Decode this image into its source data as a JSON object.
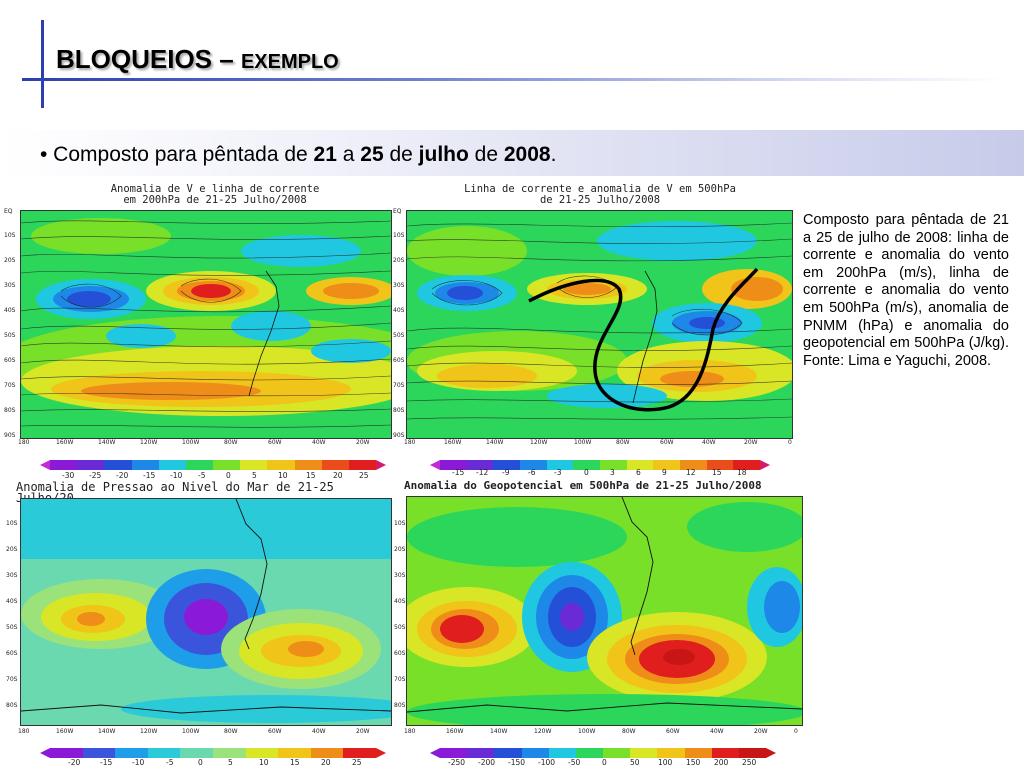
{
  "slide": {
    "title_main": "BLOQUEIOS –",
    "title_small": "EXEMPLO",
    "bullet": {
      "prefix": "• Composto para pêntada de ",
      "d1": "21",
      "mid1": " a ",
      "d2": "25",
      "mid2": " de ",
      "month": "julho",
      "mid3": " de ",
      "year": "2008",
      "end": "."
    },
    "caption": "Composto para pêntada de 21 a 25 de julho de 2008: linha de corrente e anomalia do vento em 200hPa (m/s), linha de corrente e anomalia do vento em 500hPa (m/s), anomalia de PNMM (hPa) e anomalia do geopotencial em 500hPa (J/kg). Fonte: Lima e Yaguchi, 2008."
  },
  "panels": {
    "p1": {
      "title_l1": "Anomalia de V e linha de corrente",
      "title_l2": "em 200hPa de 21-25 Julho/2008",
      "lats": [
        "EQ",
        "10S",
        "20S",
        "30S",
        "40S",
        "50S",
        "60S",
        "70S",
        "80S",
        "90S"
      ],
      "lons": [
        "180",
        "160W",
        "140W",
        "120W",
        "100W",
        "80W",
        "60W",
        "40W",
        "20W"
      ],
      "colorbar": [
        "-30",
        "-25",
        "-20",
        "-15",
        "-10",
        "-5",
        "0",
        "5",
        "10",
        "15",
        "20",
        "25"
      ],
      "colors": [
        "#8b1ad8",
        "#6a2bd6",
        "#2450d8",
        "#1e88e8",
        "#1fc8e0",
        "#2bd65a",
        "#79e02a",
        "#d9e625",
        "#f0c419",
        "#ef8d19",
        "#ea4d1a",
        "#e01e1e"
      ]
    },
    "p2": {
      "title_l1": "Linha de corrente e anomalia de V em 500hPa",
      "title_l2": "de 21-25 Julho/2008",
      "lats": [
        "EQ",
        "10S",
        "20S",
        "30S",
        "40S",
        "50S",
        "60S",
        "70S",
        "80S",
        "90S"
      ],
      "lons": [
        "180",
        "160W",
        "140W",
        "120W",
        "100W",
        "80W",
        "60W",
        "40W",
        "20W",
        "0"
      ],
      "colorbar": [
        "-15",
        "-12",
        "-9",
        "-6",
        "-3",
        "0",
        "3",
        "6",
        "9",
        "12",
        "15",
        "18"
      ],
      "colors": [
        "#8b1ad8",
        "#6a2bd6",
        "#2450d8",
        "#1e88e8",
        "#1fc8e0",
        "#2bd65a",
        "#79e02a",
        "#d9e625",
        "#f0c419",
        "#ef8d19",
        "#ea4d1a",
        "#e01e1e"
      ]
    },
    "p3": {
      "title": "Anomalia de Pressao ao Nivel do Mar de 21-25 Julho/20",
      "lats": [
        "10S",
        "20S",
        "30S",
        "40S",
        "50S",
        "60S",
        "70S",
        "80S"
      ],
      "lons": [
        "180",
        "160W",
        "140W",
        "120W",
        "100W",
        "80W",
        "60W",
        "40W",
        "20W"
      ],
      "colorbar": [
        "-20",
        "-15",
        "-10",
        "-5",
        "0",
        "5",
        "10",
        "15",
        "20",
        "25"
      ],
      "colors": [
        "#8b1ad8",
        "#3a55dc",
        "#1e9ee8",
        "#2bcad8",
        "#6ad9b0",
        "#9be27a",
        "#d9e625",
        "#f0c419",
        "#ef8d19",
        "#e01e1e"
      ]
    },
    "p4": {
      "title": "Anomalia do Geopotencial em 500hPa de 21-25 Julho/2008",
      "lats": [
        "10S",
        "20S",
        "30S",
        "40S",
        "50S",
        "60S",
        "70S",
        "80S"
      ],
      "lons": [
        "180",
        "160W",
        "140W",
        "120W",
        "100W",
        "80W",
        "60W",
        "40W",
        "20W",
        "0"
      ],
      "colorbar": [
        "-250",
        "-200",
        "-150",
        "-100",
        "-50",
        "0",
        "50",
        "100",
        "150",
        "200",
        "250"
      ],
      "colors": [
        "#8b1ad8",
        "#6a2bd6",
        "#2450d8",
        "#1e88e8",
        "#1fc8e0",
        "#2bd65a",
        "#79e02a",
        "#d9e625",
        "#f0c419",
        "#ef8d19",
        "#e01e1e",
        "#c81515"
      ]
    }
  }
}
